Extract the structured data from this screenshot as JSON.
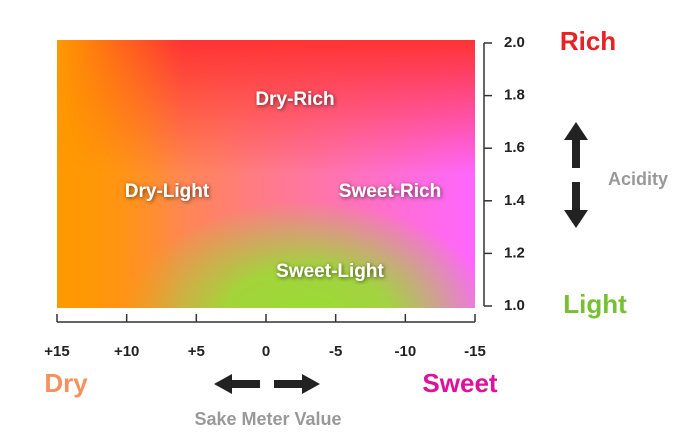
{
  "chart_data": {
    "type": "flavor-map",
    "xlim": [
      15,
      -15
    ],
    "xticks": [
      {
        "value": 15,
        "label": "+15"
      },
      {
        "value": 10,
        "label": "+10"
      },
      {
        "value": 5,
        "label": "+5"
      },
      0,
      -5,
      -10,
      -15
    ],
    "ylim": [
      1,
      2
    ],
    "yticks": [
      {
        "value": 1,
        "label": "1.0"
      },
      {
        "value": 1.2,
        "label": "1.2"
      },
      {
        "value": 1.4,
        "label": "1.4"
      },
      {
        "value": 1.6,
        "label": "1.6"
      },
      {
        "value": 1.8,
        "label": "1.8"
      },
      {
        "value": 2,
        "label": "2.0"
      }
    ],
    "regions": [
      "Dry-Rich",
      "Dry-Light",
      "Sweet-Rich",
      "Sweet-Light"
    ],
    "x_label": "Sake Meter Value",
    "x_low": "Dry",
    "x_high": "Sweet",
    "y_label": "Acidity",
    "y_low": "Light",
    "y_high": "Rich"
  }
}
